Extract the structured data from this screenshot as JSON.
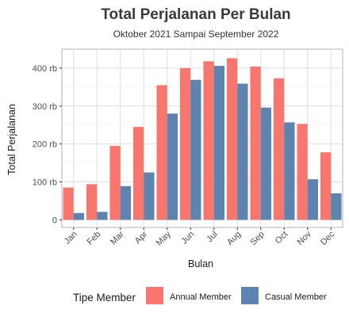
{
  "chart_data": {
    "type": "bar",
    "title": "Total Perjalanan Per Bulan",
    "subtitle": "Oktober 2021 Sampai September 2022",
    "xlabel": "Bulan",
    "ylabel": "Total Perjalanan",
    "categories": [
      "Jan",
      "Feb",
      "Mar",
      "Apr",
      "May",
      "Jun",
      "Jul",
      "Aug",
      "Sep",
      "Oct",
      "Nov",
      "Dec"
    ],
    "series": [
      {
        "name": "Annual Member",
        "color": "#F8766D",
        "values": [
          85000,
          94000,
          195000,
          245000,
          355000,
          400000,
          418000,
          426000,
          404000,
          373000,
          253000,
          178000
        ]
      },
      {
        "name": "Casual Member",
        "color": "#5C84AE",
        "values": [
          18000,
          21000,
          89000,
          125000,
          280000,
          369000,
          406000,
          359000,
          296000,
          257000,
          107000,
          70000
        ]
      }
    ],
    "ylim": [
      -20000,
      450000
    ],
    "yticks": [
      0,
      100000,
      200000,
      300000,
      400000
    ],
    "ytick_labels": [
      "0",
      "100 rb",
      "200 rb",
      "300 rb",
      "400 rb"
    ],
    "grid": true,
    "legend": {
      "title": "Tipe Member",
      "position": "bottom"
    }
  }
}
